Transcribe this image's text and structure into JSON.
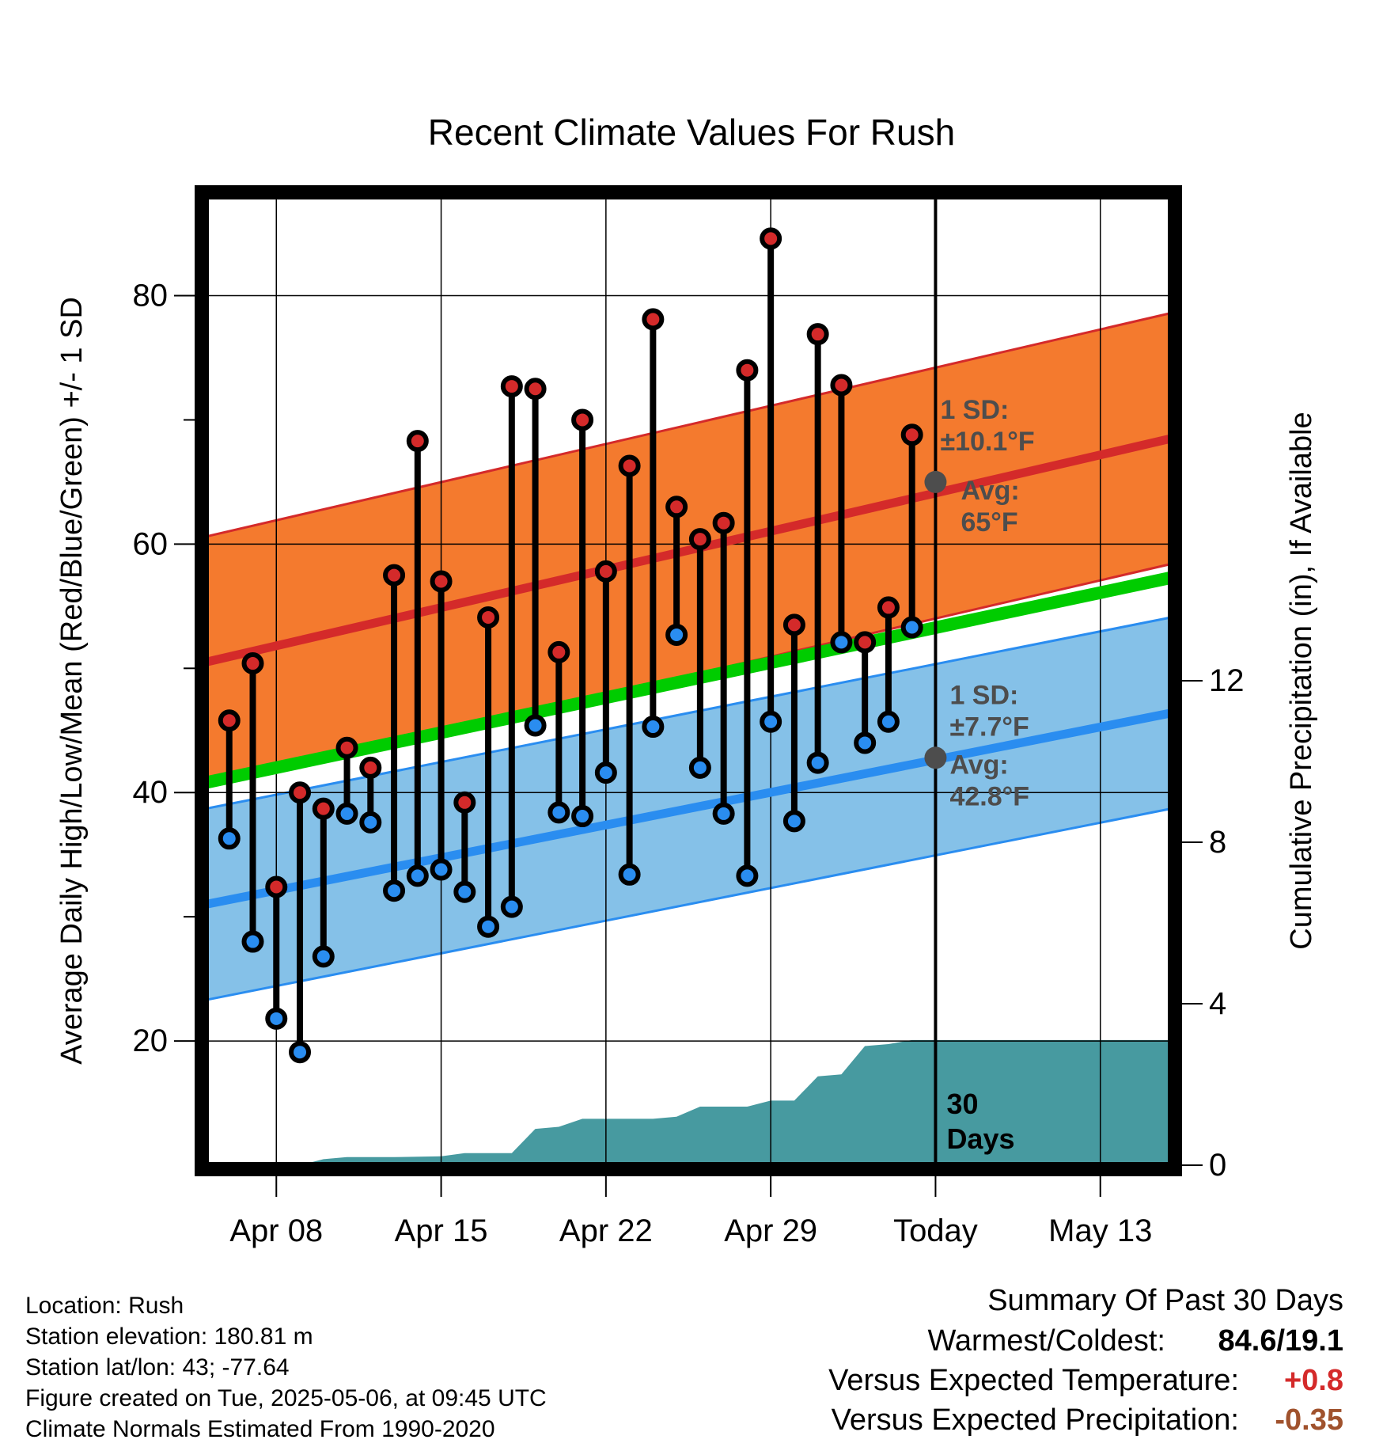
{
  "chart_data": {
    "type": "line",
    "title": "Recent Climate Values For Rush",
    "xlabel": "Day",
    "ylabel": "Average Daily High/Low/Mean (Red/Blue/Green) +/- 1 SD",
    "y2label": "Cumulative Precipitation (in), If Available",
    "ylim": [
      10,
      88
    ],
    "y2lim": [
      0,
      24
    ],
    "yticks": [
      20,
      40,
      60,
      80
    ],
    "y2ticks": [
      0,
      4,
      8,
      12
    ],
    "xlim": [
      "2025-04-05",
      "2025-05-16"
    ],
    "xtick_dates": [
      "2025-04-08",
      "2025-04-15",
      "2025-04-22",
      "2025-04-29",
      "2025-05-06",
      "2025-05-13"
    ],
    "xticks": [
      "Apr 08",
      "Apr 15",
      "Apr 22",
      "Apr 29",
      "Today",
      "May 13"
    ],
    "grid": true,
    "today": "2025-05-06",
    "today_label": "30\nDays",
    "normals": {
      "dates": [
        "2025-04-05",
        "2025-05-16"
      ],
      "high_mean": [
        50.5,
        68.5
      ],
      "high_sd": 10.1,
      "mean": [
        40.8,
        57.3
      ],
      "low_mean": [
        31.0,
        46.4
      ],
      "low_sd": 7.7
    },
    "annotations": {
      "high_sd": "1 SD:\n±10.1°F",
      "high_avg": "Avg:\n65°F",
      "low_sd": "1 SD:\n±7.7°F",
      "low_avg": "Avg:\n42.8°F",
      "high_avg_value": 65,
      "low_avg_value": 42.8
    },
    "series": [
      {
        "name": "High",
        "dates": [
          "2025-04-06",
          "2025-04-07",
          "2025-04-08",
          "2025-04-09",
          "2025-04-10",
          "2025-04-11",
          "2025-04-12",
          "2025-04-13",
          "2025-04-14",
          "2025-04-15",
          "2025-04-16",
          "2025-04-17",
          "2025-04-18",
          "2025-04-19",
          "2025-04-20",
          "2025-04-21",
          "2025-04-22",
          "2025-04-23",
          "2025-04-24",
          "2025-04-25",
          "2025-04-26",
          "2025-04-27",
          "2025-04-28",
          "2025-04-29",
          "2025-04-30",
          "2025-05-01",
          "2025-05-02",
          "2025-05-03",
          "2025-05-04",
          "2025-05-05"
        ],
        "values": [
          45.8,
          50.4,
          32.4,
          40.0,
          38.7,
          43.6,
          42.0,
          57.5,
          68.3,
          57.0,
          39.2,
          54.1,
          72.7,
          72.5,
          51.3,
          70.0,
          57.8,
          66.3,
          78.1,
          63.0,
          60.4,
          61.7,
          74.0,
          84.6,
          53.5,
          76.9,
          72.8,
          52.1,
          54.9,
          68.8
        ]
      },
      {
        "name": "Low",
        "dates": [
          "2025-04-06",
          "2025-04-07",
          "2025-04-08",
          "2025-04-09",
          "2025-04-10",
          "2025-04-11",
          "2025-04-12",
          "2025-04-13",
          "2025-04-14",
          "2025-04-15",
          "2025-04-16",
          "2025-04-17",
          "2025-04-18",
          "2025-04-19",
          "2025-04-20",
          "2025-04-21",
          "2025-04-22",
          "2025-04-23",
          "2025-04-24",
          "2025-04-25",
          "2025-04-26",
          "2025-04-27",
          "2025-04-28",
          "2025-04-29",
          "2025-04-30",
          "2025-05-01",
          "2025-05-02",
          "2025-05-03",
          "2025-05-04",
          "2025-05-05"
        ],
        "values": [
          36.3,
          28.0,
          21.8,
          19.1,
          26.8,
          38.3,
          37.6,
          32.1,
          33.3,
          33.8,
          32.0,
          29.2,
          30.8,
          45.4,
          38.4,
          38.1,
          41.6,
          33.4,
          45.3,
          52.7,
          42.0,
          38.3,
          33.3,
          45.7,
          37.7,
          42.4,
          52.1,
          44.0,
          45.7,
          53.3
        ]
      }
    ],
    "precipitation": {
      "dates": [
        "2025-04-05",
        "2025-04-08",
        "2025-04-09",
        "2025-04-10",
        "2025-04-11",
        "2025-04-13",
        "2025-04-15",
        "2025-04-16",
        "2025-04-18",
        "2025-04-19",
        "2025-04-20",
        "2025-04-21",
        "2025-04-24",
        "2025-04-25",
        "2025-04-26",
        "2025-04-28",
        "2025-04-29",
        "2025-04-30",
        "2025-05-01",
        "2025-05-02",
        "2025-05-03",
        "2025-05-04",
        "2025-05-05",
        "2025-05-16"
      ],
      "values": [
        0,
        0,
        0,
        0.15,
        0.2,
        0.2,
        0.22,
        0.3,
        0.3,
        0.9,
        0.95,
        1.15,
        1.15,
        1.2,
        1.45,
        1.45,
        1.6,
        1.6,
        2.2,
        2.25,
        2.95,
        3.0,
        3.1,
        3.1
      ]
    }
  },
  "footer": {
    "location": "Location: Rush",
    "elevation": "Station elevation: 180.81 m",
    "latlon": "Station lat/lon: 43; -77.64",
    "created": "Figure created on Tue, 2025-05-06, at 09:45 UTC",
    "normals": "Climate Normals Estimated From 1990-2020"
  },
  "summary": {
    "title": "Summary Of Past 30 Days",
    "warm_cold_label": "Warmest/Coldest:",
    "warm_cold_value": "84.6/19.1",
    "temp_label": "Versus Expected Temperature:",
    "temp_value": "+0.8",
    "temp_color": "#d42a2a",
    "precip_label": "Versus Expected Precipitation:",
    "precip_value": "-0.35",
    "precip_color": "#a0522d"
  }
}
